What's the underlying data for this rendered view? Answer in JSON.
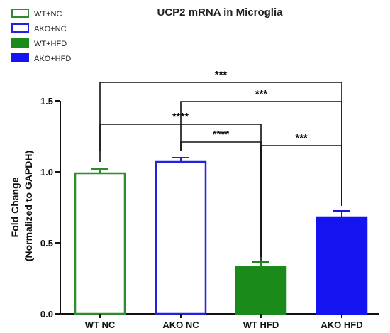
{
  "chart_data": {
    "type": "bar",
    "title": "UCP2 mRNA in Microglia",
    "ylabel": "Fold Change\n(Normalized to GAPDH)",
    "ylim": [
      0,
      1.5
    ],
    "yticks": [
      "0.0",
      "0.5",
      "1.0",
      "1.5"
    ],
    "categories": [
      "WT NC",
      "AKO NC",
      "WT HFD",
      "AKO HFD"
    ],
    "values": [
      0.99,
      1.07,
      0.33,
      0.68
    ],
    "errors": [
      0.03,
      0.03,
      0.035,
      0.045
    ],
    "bar_styles": [
      {
        "color": "#2e8b2e",
        "filled": false
      },
      {
        "color": "#2222dd",
        "filled": false
      },
      {
        "color": "#1a8a1a",
        "filled": true
      },
      {
        "color": "#1414f0",
        "filled": true
      }
    ],
    "legend": {
      "placement": "top-left",
      "entries": [
        {
          "label": "WT+NC",
          "color": "#2e8b2e",
          "filled": false
        },
        {
          "label": "AKO+NC",
          "color": "#2222dd",
          "filled": false
        },
        {
          "label": "WT+HFD",
          "color": "#1a8a1a",
          "filled": true
        },
        {
          "label": "AKO+HFD",
          "color": "#1414f0",
          "filled": true
        }
      ]
    },
    "significance": [
      {
        "from": 0,
        "to": 3,
        "label": "***"
      },
      {
        "from": 1,
        "to": 3,
        "label": "***"
      },
      {
        "from": 0,
        "to": 2,
        "label": "****"
      },
      {
        "from": 1,
        "to": 2,
        "label": "****"
      },
      {
        "from": 2,
        "to": 3,
        "label": "***"
      }
    ]
  }
}
